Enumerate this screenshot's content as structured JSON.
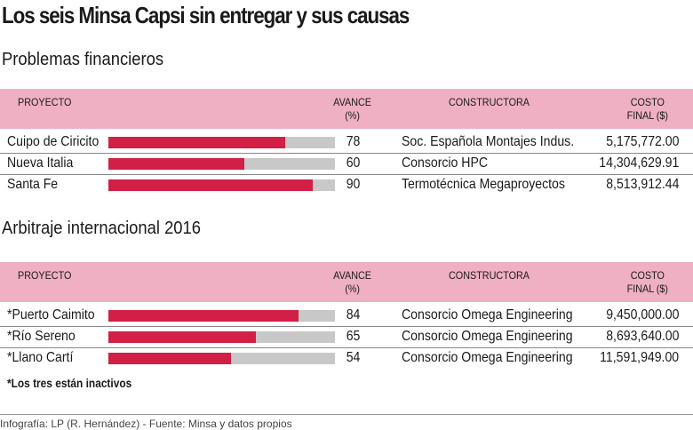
{
  "title": "Los seis Minsa Capsi sin entregar y sus causas",
  "headers": {
    "proyecto": "PROYECTO",
    "avance1": "AVANCE",
    "avance2": "(%)",
    "constructora": "CONSTRUCTORA",
    "costo1": "COSTO",
    "costo2": "FINAL ($)"
  },
  "colors": {
    "header": "#efb0c4",
    "bar": "#d11f45",
    "track": "#c8c8c8"
  },
  "chart_data": [
    {
      "type": "bar",
      "title": "Problemas financieros",
      "xlim": [
        0,
        100
      ],
      "rows": [
        {
          "proyecto": "Cuipo de Ciricito",
          "avance": 78,
          "constructora": "Soc. Española Montajes Indus.",
          "costo": "5,175,772.00"
        },
        {
          "proyecto": "Nueva Italia",
          "avance": 60,
          "constructora": "Consorcio HPC",
          "costo": "14,304,629.91"
        },
        {
          "proyecto": "Santa Fe",
          "avance": 90,
          "constructora": "Termotécnica Megaproyectos",
          "costo": "8,513,912.44"
        }
      ]
    },
    {
      "type": "bar",
      "title": "Arbitraje internacional 2016",
      "xlim": [
        0,
        100
      ],
      "rows": [
        {
          "proyecto": "*Puerto Caimito",
          "avance": 84,
          "constructora": "Consorcio Omega Engineering",
          "costo": "9,450,000.00"
        },
        {
          "proyecto": "*Río Sereno",
          "avance": 65,
          "constructora": "Consorcio Omega Engineering",
          "costo": "8,693,640.00"
        },
        {
          "proyecto": "*Llano Cartí",
          "avance": 54,
          "constructora": "Consorcio Omega Engineering",
          "costo": "11,591,949.00"
        }
      ]
    }
  ],
  "note": "*Los tres están inactivos",
  "footer": "Infografía: LP (R. Hernández) - Fuente: Minsa y datos propios"
}
